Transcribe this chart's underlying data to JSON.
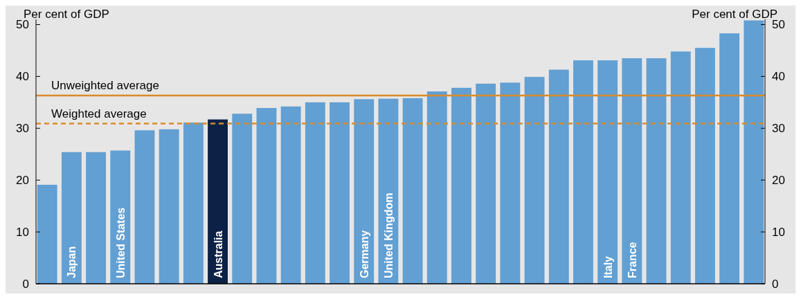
{
  "chart_data": {
    "type": "bar",
    "ylabel": "Per cent of GDP",
    "y2label": "Per cent of GDP",
    "categories": [
      null,
      "Japan",
      null,
      "United States",
      null,
      null,
      null,
      "Australia",
      null,
      null,
      null,
      null,
      null,
      "Germany",
      "United Kingdom",
      null,
      null,
      null,
      null,
      null,
      null,
      null,
      null,
      "Italy",
      "France",
      null,
      null,
      null,
      null,
      null
    ],
    "values": [
      19.1,
      25.4,
      25.4,
      25.7,
      29.6,
      29.8,
      31.1,
      31.7,
      32.8,
      33.9,
      34.2,
      35.0,
      35.0,
      35.6,
      35.7,
      35.8,
      37.1,
      37.8,
      38.6,
      38.8,
      39.9,
      41.3,
      43.1,
      43.1,
      43.5,
      43.5,
      44.8,
      45.5,
      48.3,
      50.8
    ],
    "colors": [
      "#629fd2",
      "#629fd2",
      "#629fd2",
      "#629fd2",
      "#629fd2",
      "#629fd2",
      "#629fd2",
      "#0c2145",
      "#629fd2",
      "#629fd2",
      "#629fd2",
      "#629fd2",
      "#629fd2",
      "#629fd2",
      "#629fd2",
      "#629fd2",
      "#629fd2",
      "#629fd2",
      "#629fd2",
      "#629fd2",
      "#629fd2",
      "#629fd2",
      "#629fd2",
      "#629fd2",
      "#629fd2",
      "#629fd2",
      "#629fd2",
      "#629fd2",
      "#629fd2",
      "#629fd2"
    ],
    "ylim": [
      0,
      51
    ],
    "yticks": [
      0,
      10,
      20,
      30,
      40,
      50
    ],
    "y2lim": [
      0,
      51
    ],
    "y2ticks": [
      0,
      10,
      20,
      30,
      40,
      50
    ],
    "ref_lines": [
      {
        "axis": "y",
        "value": 36.3,
        "label": "Unweighted average",
        "color": "#d98c2a",
        "line_style": "solid"
      },
      {
        "axis": "y",
        "value": 30.9,
        "label": "Weighted average",
        "color": "#d98c2a",
        "line_style": "dashed"
      }
    ],
    "grid": false
  }
}
